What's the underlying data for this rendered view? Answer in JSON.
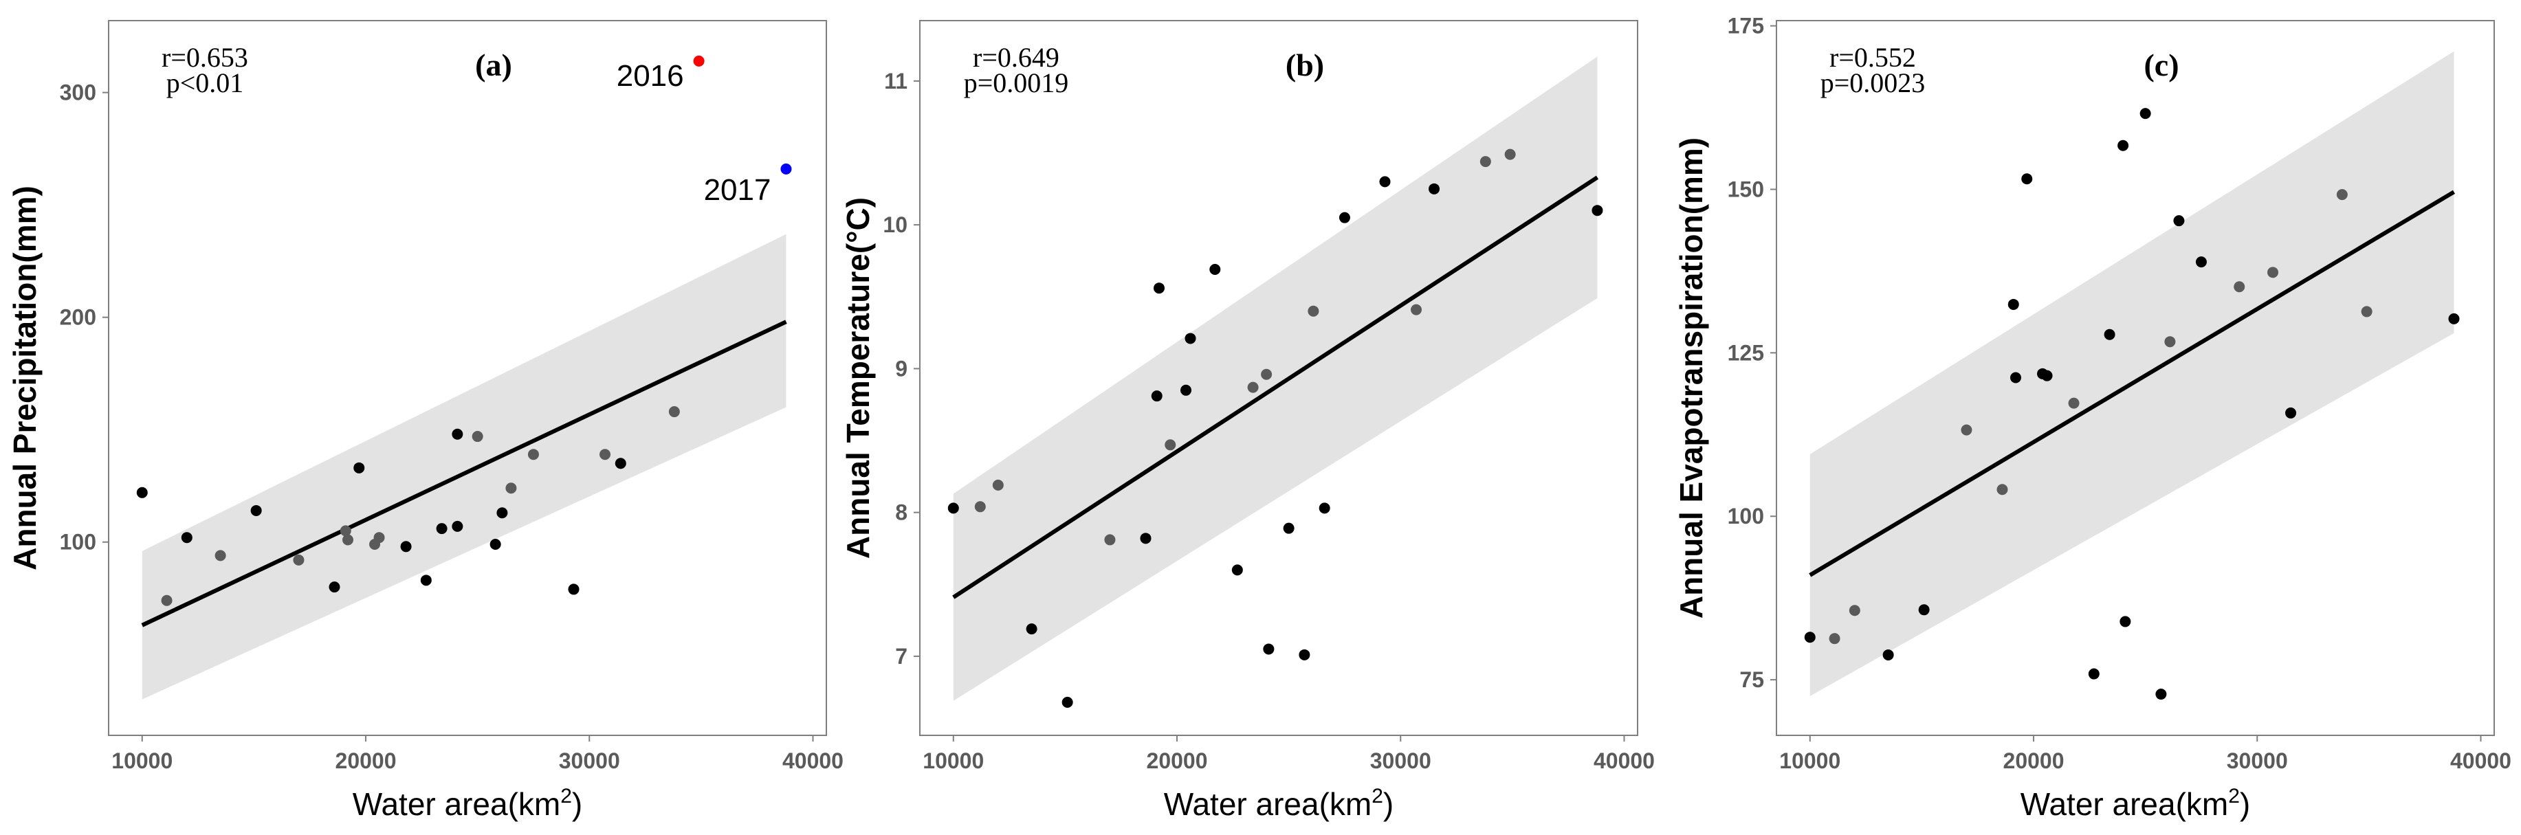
{
  "figure": {
    "background": "#ffffff"
  },
  "colors": {
    "point_dark": "#000000",
    "point_gray": "#5a5a5a",
    "band": "#e3e3e3",
    "line": "#000000",
    "frame": "#7f7f7f",
    "tick_label": "#5a5a5a",
    "highlight_2016": "#ff0000",
    "highlight_2017": "#0000ff"
  },
  "chart_data": [
    {
      "type": "scatter",
      "panel_label": "(a)",
      "xlabel_main": "Water area(km",
      "xlabel_sup": "2",
      "xlabel_close": ")",
      "ylabel": "Annual Precipitation(mm)",
      "xlim": [
        8500,
        40600
      ],
      "ylim": [
        14,
        332
      ],
      "xticks": [
        10000,
        20000,
        30000,
        40000
      ],
      "xtick_labels": [
        "10000",
        "20000",
        "30000",
        "40000"
      ],
      "yticks": [
        100,
        200,
        300
      ],
      "ytick_labels": [
        "100",
        "200",
        "300"
      ],
      "stats": [
        "r=0.653",
        "p<0.01"
      ],
      "fit": {
        "x": [
          10000,
          38800
        ],
        "y": [
          63,
          198
        ]
      },
      "band": {
        "x": [
          10000,
          38800
        ],
        "lower": [
          30,
          160
        ],
        "upper": [
          96,
          237
        ]
      },
      "points": {
        "x": [
          10000,
          11100,
          12000,
          13500,
          15100,
          17000,
          18600,
          19100,
          19200,
          19700,
          20400,
          20600,
          21800,
          22700,
          23400,
          24100,
          24100,
          25000,
          25800,
          26100,
          26500,
          27500,
          29300,
          30700,
          31400,
          33800
        ],
        "y": [
          122,
          74,
          102,
          94,
          114,
          92,
          80,
          105,
          101,
          133,
          99,
          102,
          98,
          83,
          106,
          148,
          107,
          147,
          99,
          113,
          124,
          139,
          79,
          139,
          135,
          158
        ],
        "shade": [
          "dark",
          "gray",
          "dark",
          "gray",
          "dark",
          "gray",
          "dark",
          "gray",
          "gray",
          "dark",
          "gray",
          "gray",
          "dark",
          "dark",
          "dark",
          "dark",
          "dark",
          "gray",
          "dark",
          "dark",
          "gray",
          "gray",
          "dark",
          "gray",
          "dark",
          "gray"
        ]
      },
      "highlights": [
        {
          "label": "2016",
          "x": 34900,
          "y": 314,
          "color": "#ff0000"
        },
        {
          "label": "2017",
          "x": 38800,
          "y": 266,
          "color": "#0000ff"
        }
      ]
    },
    {
      "type": "scatter",
      "panel_label": "(b)",
      "xlabel_main": "Water area(km",
      "xlabel_sup": "2",
      "xlabel_close": ")",
      "ylabel": "Annual Temperature(°C)",
      "xlim": [
        8500,
        40600
      ],
      "ylim": [
        6.45,
        11.42
      ],
      "xticks": [
        10000,
        20000,
        30000,
        40000
      ],
      "xtick_labels": [
        "10000",
        "20000",
        "30000",
        "40000"
      ],
      "yticks": [
        7,
        8,
        9,
        10,
        11
      ],
      "ytick_labels": [
        "7",
        "8",
        "9",
        "10",
        "11"
      ],
      "stats": [
        "r=0.649",
        "p=0.0019"
      ],
      "fit": {
        "x": [
          10000,
          38800
        ],
        "y": [
          7.41,
          10.33
        ]
      },
      "band": {
        "x": [
          10000,
          38800
        ],
        "lower": [
          6.69,
          9.49
        ],
        "upper": [
          8.13,
          11.17
        ]
      },
      "points": {
        "x": [
          10000,
          11200,
          12000,
          13500,
          15100,
          17000,
          18600,
          19100,
          19200,
          19700,
          20400,
          20600,
          21700,
          22700,
          23400,
          24000,
          24100,
          25000,
          25700,
          26100,
          26600,
          27500,
          29300,
          30700,
          31500,
          33800,
          34900,
          38800
        ],
        "y": [
          8.03,
          8.04,
          8.19,
          7.19,
          6.68,
          7.81,
          7.82,
          8.81,
          9.56,
          8.47,
          8.85,
          9.21,
          9.69,
          7.6,
          8.87,
          8.96,
          7.05,
          7.89,
          7.01,
          9.4,
          8.03,
          10.05,
          10.3,
          9.41,
          10.25,
          10.44,
          10.49,
          10.1
        ],
        "shade": [
          "dark",
          "gray",
          "gray",
          "dark",
          "dark",
          "gray",
          "dark",
          "dark",
          "dark",
          "gray",
          "dark",
          "dark",
          "dark",
          "dark",
          "gray",
          "gray",
          "dark",
          "dark",
          "dark",
          "gray",
          "dark",
          "dark",
          "dark",
          "gray",
          "dark",
          "gray",
          "gray",
          "dark"
        ]
      }
    },
    {
      "type": "scatter",
      "panel_label": "(c)",
      "xlabel_main": "Water area(km",
      "xlabel_sup": "2",
      "xlabel_close": ")",
      "ylabel": "Annual Evapotranspiration(mm)",
      "xlim": [
        8500,
        40600
      ],
      "ylim": [
        66.5,
        175.8
      ],
      "xticks": [
        10000,
        20000,
        30000,
        40000
      ],
      "xtick_labels": [
        "10000",
        "20000",
        "30000",
        "40000"
      ],
      "yticks": [
        75,
        100,
        125,
        150,
        175
      ],
      "ytick_labels": [
        "75",
        "100",
        "125",
        "150",
        "175"
      ],
      "stats": [
        "r=0.552",
        "p=0.0023"
      ],
      "fit": {
        "x": [
          10000,
          38800
        ],
        "y": [
          91,
          149.6
        ]
      },
      "band": {
        "x": [
          10000,
          38800
        ],
        "lower": [
          72.5,
          128
        ],
        "upper": [
          109.5,
          171.1
        ]
      },
      "points": {
        "x": [
          10000,
          11100,
          12000,
          13500,
          15100,
          17000,
          18600,
          19100,
          19200,
          19700,
          20400,
          20600,
          21800,
          22700,
          23400,
          24000,
          24100,
          25000,
          25700,
          26100,
          26500,
          27500,
          29200,
          30700,
          31500,
          33800,
          34900,
          38800
        ],
        "y": [
          81.5,
          81.3,
          85.6,
          78.8,
          85.7,
          113.2,
          104.1,
          132.4,
          121.2,
          151.6,
          121.8,
          121.5,
          117.3,
          75.9,
          127.8,
          156.7,
          83.9,
          161.6,
          72.8,
          126.7,
          145.2,
          138.9,
          135.1,
          137.3,
          115.8,
          149.2,
          131.3,
          130.2
        ],
        "shade": [
          "dark",
          "gray",
          "gray",
          "dark",
          "dark",
          "gray",
          "gray",
          "dark",
          "dark",
          "dark",
          "dark",
          "dark",
          "gray",
          "dark",
          "dark",
          "dark",
          "dark",
          "dark",
          "dark",
          "gray",
          "dark",
          "dark",
          "gray",
          "gray",
          "dark",
          "gray",
          "gray",
          "dark"
        ]
      }
    }
  ]
}
